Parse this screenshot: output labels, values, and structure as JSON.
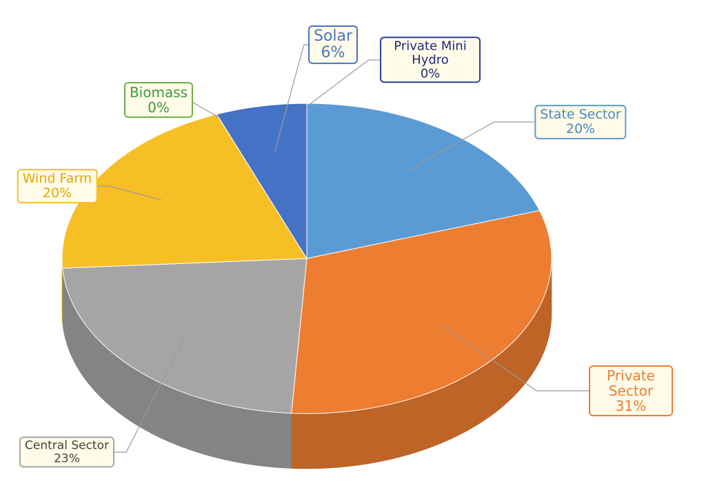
{
  "chart_data": {
    "type": "pie",
    "categories": [
      "State Sector",
      "Private Sector",
      "Central Sector",
      "Wind Farm",
      "Biomass",
      "Solar",
      "Private Mini Hydro"
    ],
    "values": [
      20,
      31,
      23,
      20,
      0,
      6,
      0
    ],
    "value_labels": [
      "20%",
      "31%",
      "23%",
      "20%",
      "0%",
      "6%",
      "0%"
    ],
    "colors": [
      "#5b9bd5",
      "#ed7d31",
      "#a5a5a5",
      "#f6bf26",
      "#70ad47",
      "#4472c4",
      "#2e3f8f"
    ]
  }
}
